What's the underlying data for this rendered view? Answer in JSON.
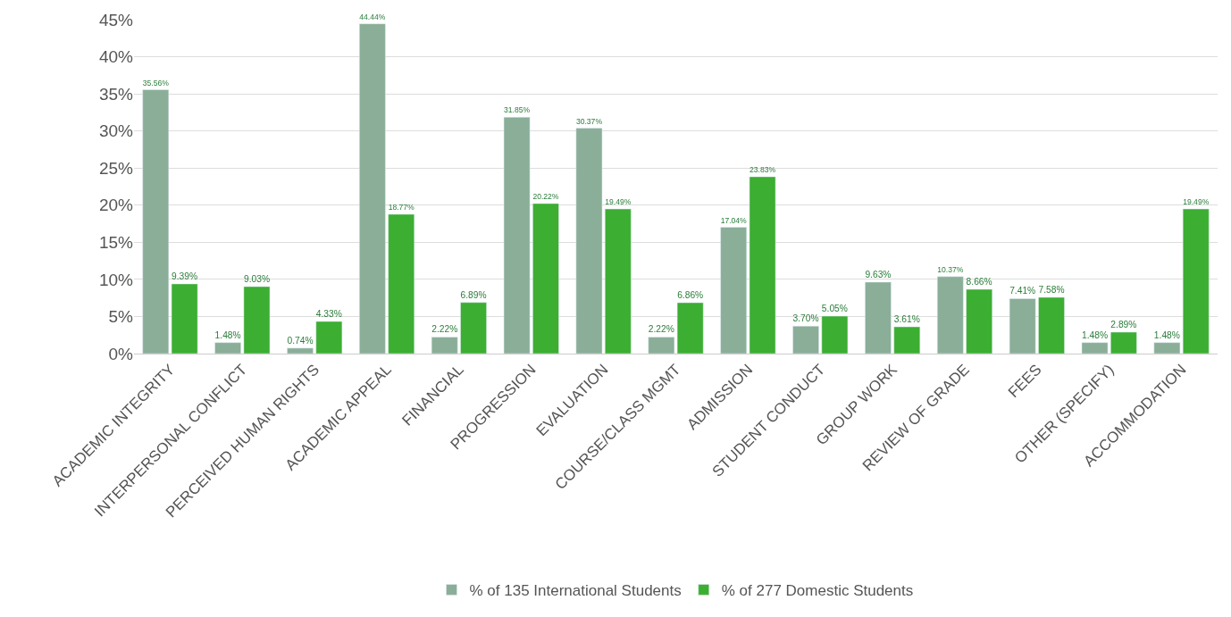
{
  "chart_data": {
    "type": "bar",
    "categories": [
      "ACADEMIC INTEGRITY",
      "INTERPERSONAL CONFLICT",
      "PERCEIVED HUMAN RIGHTS",
      "ACADEMIC APPEAL",
      "FINANCIAL",
      "PROGRESSION",
      "EVALUATION",
      "COURSE/CLASS MGMT",
      "ADMISSION",
      "STUDENT CONDUCT",
      "GROUP WORK",
      "REVIEW OF GRADE",
      "FEES",
      "OTHER (SPECIFY)",
      "ACCOMMODATION"
    ],
    "series": [
      {
        "name": "% of 135 International Students",
        "color": "#8aae98",
        "values": [
          35.56,
          1.48,
          0.74,
          44.44,
          2.22,
          31.85,
          30.37,
          2.22,
          17.04,
          3.7,
          9.63,
          10.37,
          7.41,
          1.48,
          1.48
        ],
        "value_labels": [
          "35.56%",
          "1.48%",
          "0.74%",
          "44.44%",
          "2.22%",
          "31.85%",
          "30.37%",
          "2.22%",
          "17.04%",
          "3.70%",
          "9.63%",
          "10.37%",
          "7.41%",
          "1.48%",
          "1.48%"
        ]
      },
      {
        "name": "% of 277 Domestic Students",
        "color": "#3cae32",
        "values": [
          9.39,
          9.03,
          4.33,
          18.77,
          6.89,
          20.22,
          19.49,
          6.86,
          23.83,
          5.05,
          3.61,
          8.66,
          7.58,
          2.89,
          19.49
        ],
        "value_labels": [
          "9.39%",
          "9.03%",
          "4.33%",
          "18.77%",
          "6.89%",
          "20.22%",
          "19.49%",
          "6.86%",
          "23.83%",
          "5.05%",
          "3.61%",
          "8.66%",
          "7.58%",
          "2.89%",
          "19.49%"
        ]
      }
    ],
    "ylim": [
      0,
      45
    ],
    "yticks": [
      {
        "value": 0,
        "label": "0%"
      },
      {
        "value": 5,
        "label": "5%"
      },
      {
        "value": 10,
        "label": "10%"
      },
      {
        "value": 15,
        "label": "15%"
      },
      {
        "value": 20,
        "label": "20%"
      },
      {
        "value": 25,
        "label": "25%"
      },
      {
        "value": 30,
        "label": "30%"
      },
      {
        "value": 35,
        "label": "35%"
      },
      {
        "value": 40,
        "label": "40%"
      },
      {
        "value": 45,
        "label": "45%"
      }
    ],
    "grid": "y",
    "legend": "bottom"
  }
}
